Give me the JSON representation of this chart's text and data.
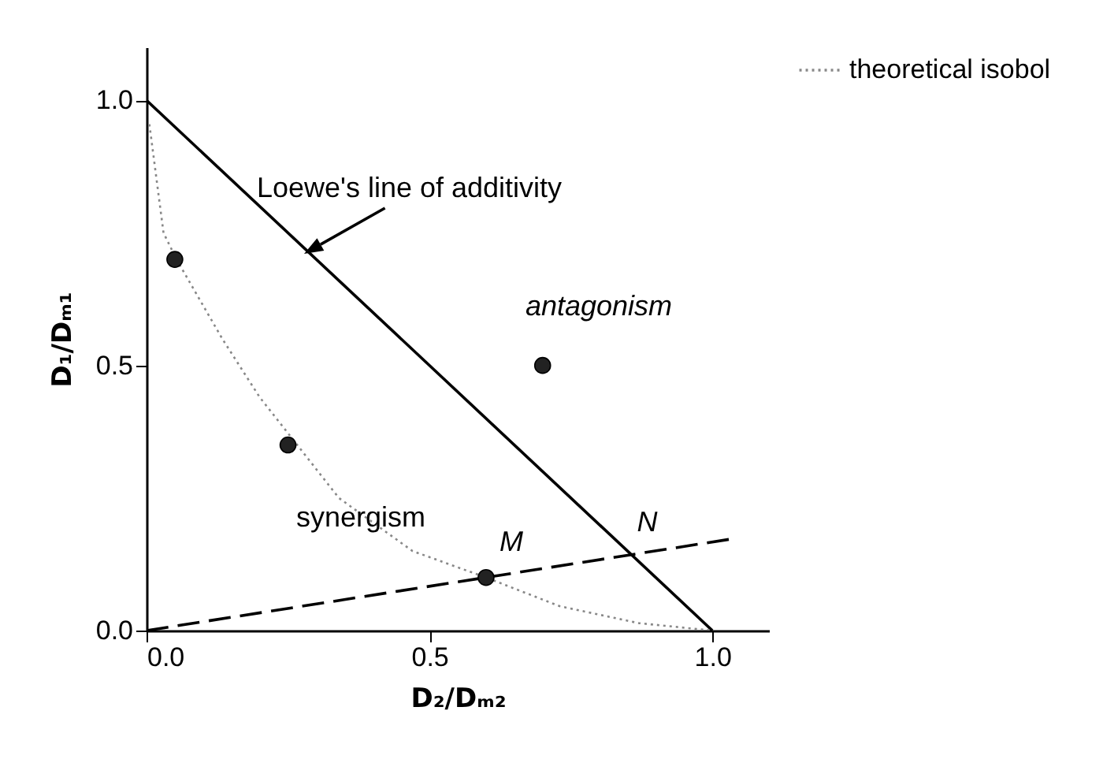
{
  "chart_data": {
    "type": "line",
    "xlabel": "D₂/Dₘ₂",
    "ylabel": "D₁/Dₘ₁",
    "xlim": [
      0,
      1.1
    ],
    "ylim": [
      0,
      1.1
    ],
    "xticks": [
      {
        "value": 0,
        "label": "0.0"
      },
      {
        "value": 0.5,
        "label": "0.5"
      },
      {
        "value": 1,
        "label": "1.0"
      }
    ],
    "yticks": [
      {
        "value": 0,
        "label": "0.0"
      },
      {
        "value": 0.5,
        "label": "0.5"
      },
      {
        "value": 1,
        "label": "1.0"
      }
    ],
    "grid": false,
    "legend": "right",
    "series": [
      {
        "color": "#000000",
        "line_style": "solid",
        "x": [
          0,
          1
        ],
        "values": [
          1,
          0
        ]
      },
      {
        "color": "#000000",
        "line_style": "dashed",
        "x": [
          0,
          1.03
        ],
        "values": [
          0,
          0.172
        ]
      },
      {
        "name": "theoretical isobol",
        "color": "#888888",
        "line_style": "dotted",
        "x": [
          0.005,
          0.03,
          0.053,
          0.134,
          0.2,
          0.34,
          0.47,
          0.6,
          0.73,
          0.87,
          1.0
        ],
        "values": [
          0.955,
          0.75,
          0.7,
          0.55,
          0.44,
          0.25,
          0.15,
          0.1,
          0.046,
          0.014,
          0
        ]
      },
      {
        "type": "scatter",
        "color": "#222222",
        "marker": "circle",
        "x": [
          0.05,
          0.25,
          0.7,
          0.6
        ],
        "values": [
          0.7,
          0.35,
          0.5,
          0.1
        ]
      }
    ],
    "annotations": [
      "Loewe's line of additivity",
      "antagonism",
      "synergism",
      {
        "text": "M",
        "x": 0.6,
        "y": 0.1
      },
      {
        "text": "N",
        "x": 0.857,
        "y": 0.143
      }
    ]
  }
}
